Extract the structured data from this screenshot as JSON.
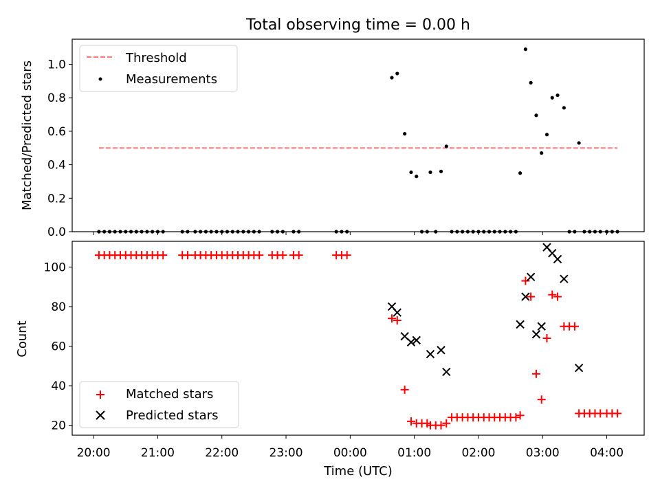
{
  "chart_data": [
    {
      "type": "scatter",
      "title": "Total observing time = 0.00 h",
      "xlabel": "",
      "ylabel": "Matched/Predicted stars",
      "xlim": [
        "19:40",
        "04:35"
      ],
      "ylim": [
        0,
        1.15
      ],
      "y_ticks": [
        "0.0",
        "0.2",
        "0.4",
        "0.6",
        "0.8",
        "1.0"
      ],
      "x_ticks": [
        "20:00",
        "21:00",
        "22:00",
        "23:00",
        "00:00",
        "01:00",
        "02:00",
        "03:00",
        "04:00"
      ],
      "x_ticklabels_visible": false,
      "grid": false,
      "legend": {
        "position": "top-left",
        "entries": [
          "Threshold",
          "Measurements"
        ]
      },
      "threshold": {
        "name": "Threshold",
        "value": 0.5,
        "x_start": "20:05",
        "x_end": "04:10",
        "color": "#ff7777",
        "style": "dashed"
      },
      "series": [
        {
          "name": "Measurements",
          "color": "#000000",
          "points": [
            [
              "20:05",
              0
            ],
            [
              "20:10",
              0
            ],
            [
              "20:15",
              0
            ],
            [
              "20:20",
              0
            ],
            [
              "20:25",
              0
            ],
            [
              "20:30",
              0
            ],
            [
              "20:35",
              0
            ],
            [
              "20:40",
              0
            ],
            [
              "20:45",
              0
            ],
            [
              "20:50",
              0
            ],
            [
              "20:55",
              0
            ],
            [
              "21:00",
              0
            ],
            [
              "21:05",
              0
            ],
            [
              "21:23",
              0
            ],
            [
              "21:28",
              0
            ],
            [
              "21:35",
              0
            ],
            [
              "21:40",
              0
            ],
            [
              "21:45",
              0
            ],
            [
              "21:50",
              0
            ],
            [
              "21:55",
              0
            ],
            [
              "22:00",
              0
            ],
            [
              "22:05",
              0
            ],
            [
              "22:10",
              0
            ],
            [
              "22:15",
              0
            ],
            [
              "22:20",
              0
            ],
            [
              "22:25",
              0
            ],
            [
              "22:30",
              0
            ],
            [
              "22:35",
              0
            ],
            [
              "22:47",
              0
            ],
            [
              "22:52",
              0
            ],
            [
              "22:57",
              0
            ],
            [
              "23:07",
              0
            ],
            [
              "23:12",
              0
            ],
            [
              "23:47",
              0
            ],
            [
              "23:52",
              0
            ],
            [
              "23:57",
              0
            ],
            [
              "00:39",
              0.92
            ],
            [
              "00:44",
              0.945
            ],
            [
              "00:51",
              0.585
            ],
            [
              "00:57",
              0.355
            ],
            [
              "01:02",
              0.33
            ],
            [
              "01:07",
              0
            ],
            [
              "01:12",
              0
            ],
            [
              "01:15",
              0.355
            ],
            [
              "01:20",
              0
            ],
            [
              "01:25",
              0.36
            ],
            [
              "01:30",
              0.51
            ],
            [
              "01:35",
              0
            ],
            [
              "01:40",
              0
            ],
            [
              "01:45",
              0
            ],
            [
              "01:50",
              0
            ],
            [
              "01:55",
              0
            ],
            [
              "02:00",
              0
            ],
            [
              "02:05",
              0
            ],
            [
              "02:10",
              0
            ],
            [
              "02:15",
              0
            ],
            [
              "02:20",
              0
            ],
            [
              "02:25",
              0
            ],
            [
              "02:30",
              0
            ],
            [
              "02:35",
              0
            ],
            [
              "02:39",
              0.35
            ],
            [
              "02:44",
              1.09
            ],
            [
              "02:49",
              0.89
            ],
            [
              "02:54",
              0.695
            ],
            [
              "02:59",
              0.47
            ],
            [
              "03:04",
              0.58
            ],
            [
              "03:09",
              0.8
            ],
            [
              "03:14",
              0.815
            ],
            [
              "03:20",
              0.74
            ],
            [
              "03:25",
              0
            ],
            [
              "03:30",
              0
            ],
            [
              "03:34",
              0.53
            ],
            [
              "03:39",
              0
            ],
            [
              "03:44",
              0
            ],
            [
              "03:49",
              0
            ],
            [
              "03:54",
              0
            ],
            [
              "04:00",
              0
            ],
            [
              "04:05",
              0
            ],
            [
              "04:10",
              0
            ]
          ]
        }
      ]
    },
    {
      "type": "scatter",
      "title": "",
      "xlabel": "Time (UTC)",
      "ylabel": "Count",
      "xlim": [
        "19:40",
        "04:35"
      ],
      "ylim": [
        15,
        113
      ],
      "y_ticks": [
        "20",
        "40",
        "60",
        "80",
        "100"
      ],
      "x_ticks": [
        "20:00",
        "21:00",
        "22:00",
        "23:00",
        "00:00",
        "01:00",
        "02:00",
        "03:00",
        "04:00"
      ],
      "grid": false,
      "legend": {
        "position": "bottom-left",
        "entries": [
          "Matched stars",
          "Predicted stars"
        ]
      },
      "series": [
        {
          "name": "Matched stars",
          "marker": "plus",
          "color": "#ff0000",
          "points": [
            [
              "20:05",
              106
            ],
            [
              "20:10",
              106
            ],
            [
              "20:15",
              106
            ],
            [
              "20:20",
              106
            ],
            [
              "20:25",
              106
            ],
            [
              "20:30",
              106
            ],
            [
              "20:35",
              106
            ],
            [
              "20:40",
              106
            ],
            [
              "20:45",
              106
            ],
            [
              "20:50",
              106
            ],
            [
              "20:55",
              106
            ],
            [
              "21:00",
              106
            ],
            [
              "21:05",
              106
            ],
            [
              "21:23",
              106
            ],
            [
              "21:28",
              106
            ],
            [
              "21:35",
              106
            ],
            [
              "21:40",
              106
            ],
            [
              "21:45",
              106
            ],
            [
              "21:50",
              106
            ],
            [
              "21:55",
              106
            ],
            [
              "22:00",
              106
            ],
            [
              "22:05",
              106
            ],
            [
              "22:10",
              106
            ],
            [
              "22:15",
              106
            ],
            [
              "22:20",
              106
            ],
            [
              "22:25",
              106
            ],
            [
              "22:30",
              106
            ],
            [
              "22:35",
              106
            ],
            [
              "22:47",
              106
            ],
            [
              "22:52",
              106
            ],
            [
              "22:57",
              106
            ],
            [
              "23:07",
              106
            ],
            [
              "23:12",
              106
            ],
            [
              "23:47",
              106
            ],
            [
              "23:52",
              106
            ],
            [
              "23:57",
              106
            ],
            [
              "00:39",
              74
            ],
            [
              "00:44",
              73
            ],
            [
              "00:51",
              38
            ],
            [
              "00:57",
              22
            ],
            [
              "01:02",
              21
            ],
            [
              "01:07",
              21
            ],
            [
              "01:12",
              21
            ],
            [
              "01:15",
              20
            ],
            [
              "01:20",
              20
            ],
            [
              "01:25",
              20
            ],
            [
              "01:30",
              21
            ],
            [
              "01:35",
              24
            ],
            [
              "01:40",
              24
            ],
            [
              "01:45",
              24
            ],
            [
              "01:50",
              24
            ],
            [
              "01:55",
              24
            ],
            [
              "02:00",
              24
            ],
            [
              "02:05",
              24
            ],
            [
              "02:10",
              24
            ],
            [
              "02:15",
              24
            ],
            [
              "02:20",
              24
            ],
            [
              "02:25",
              24
            ],
            [
              "02:30",
              24
            ],
            [
              "02:35",
              24
            ],
            [
              "02:39",
              25
            ],
            [
              "02:44",
              93
            ],
            [
              "02:49",
              85
            ],
            [
              "02:54",
              46
            ],
            [
              "02:59",
              33
            ],
            [
              "03:04",
              64
            ],
            [
              "03:09",
              86
            ],
            [
              "03:14",
              85
            ],
            [
              "03:20",
              70
            ],
            [
              "03:25",
              70
            ],
            [
              "03:30",
              70
            ],
            [
              "03:34",
              26
            ],
            [
              "03:39",
              26
            ],
            [
              "03:44",
              26
            ],
            [
              "03:49",
              26
            ],
            [
              "03:54",
              26
            ],
            [
              "04:00",
              26
            ],
            [
              "04:05",
              26
            ],
            [
              "04:10",
              26
            ]
          ]
        },
        {
          "name": "Predicted stars",
          "marker": "x",
          "color": "#000000",
          "points": [
            [
              "00:39",
              80
            ],
            [
              "00:44",
              77
            ],
            [
              "00:51",
              65
            ],
            [
              "00:57",
              62
            ],
            [
              "01:02",
              63
            ],
            [
              "01:15",
              56
            ],
            [
              "01:25",
              58
            ],
            [
              "01:30",
              47
            ],
            [
              "02:39",
              71
            ],
            [
              "02:44",
              85
            ],
            [
              "02:49",
              95
            ],
            [
              "02:54",
              66
            ],
            [
              "02:59",
              70
            ],
            [
              "03:04",
              110
            ],
            [
              "03:09",
              107
            ],
            [
              "03:14",
              104
            ],
            [
              "03:20",
              94
            ],
            [
              "03:34",
              49
            ]
          ]
        }
      ]
    }
  ]
}
